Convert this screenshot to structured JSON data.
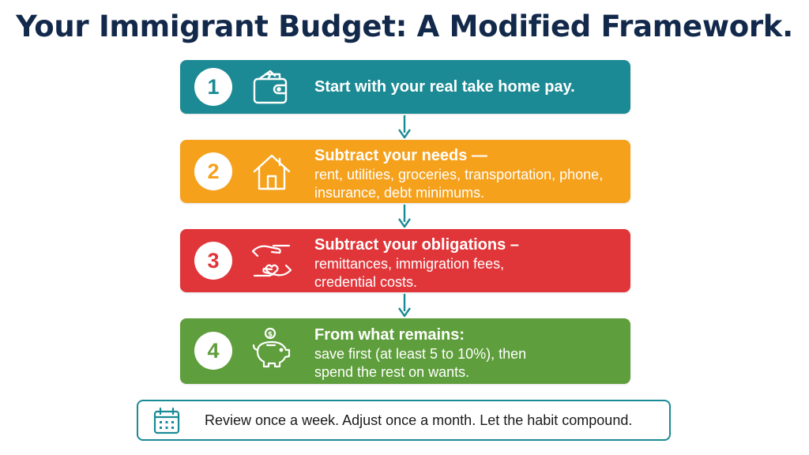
{
  "title": "Your Immigrant Budget: A Modified Framework.",
  "steps": [
    {
      "number": "1",
      "icon": "wallet-icon",
      "color": "#1c8a94",
      "heading": "Start with your real take home pay.",
      "body": ""
    },
    {
      "number": "2",
      "icon": "house-icon",
      "color": "#f5a11c",
      "heading": "Subtract your needs —",
      "body": "rent, utilities, groceries, transportation, phone, insurance, debt minimums."
    },
    {
      "number": "3",
      "icon": "hands-heart-icon",
      "color": "#e0363a",
      "heading": "Subtract your obligations –",
      "body": "remittances, immigration fees, credential costs."
    },
    {
      "number": "4",
      "icon": "piggy-bank-icon",
      "color": "#5f9e3c",
      "heading": "From what remains:",
      "body": "save first (at least 5 to 10%), then spend the rest on wants."
    }
  ],
  "footer": {
    "icon": "calendar-icon",
    "text": "Review once a week. Adjust once a month. Let the habit compound."
  }
}
